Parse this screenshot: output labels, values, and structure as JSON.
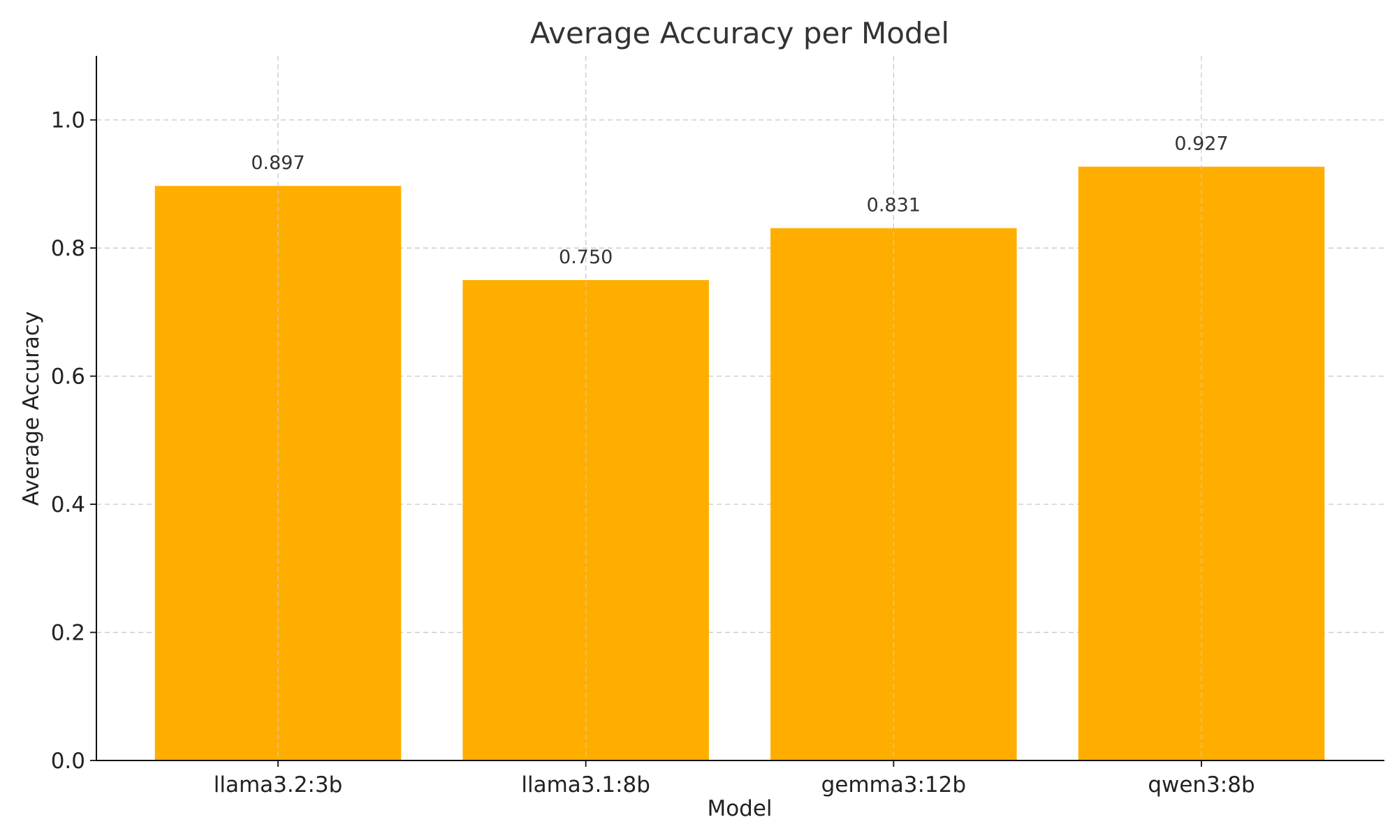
{
  "chart_data": {
    "type": "bar",
    "title": "Average Accuracy per Model",
    "xlabel": "Model",
    "ylabel": "Average Accuracy",
    "categories": [
      "llama3.2:3b",
      "llama3.1:8b",
      "gemma3:12b",
      "qwen3:8b"
    ],
    "values": [
      0.897,
      0.75,
      0.831,
      0.927
    ],
    "value_labels": [
      "0.897",
      "0.750",
      "0.831",
      "0.927"
    ],
    "ylim": [
      0,
      1.1
    ],
    "yticks": [
      0.0,
      0.2,
      0.4,
      0.6,
      0.8,
      1.0
    ],
    "ytick_labels": [
      "0.0",
      "0.2",
      "0.4",
      "0.6",
      "0.8",
      "1.0"
    ],
    "grid": true,
    "bar_color": "#FFAE00",
    "legend": "none"
  }
}
